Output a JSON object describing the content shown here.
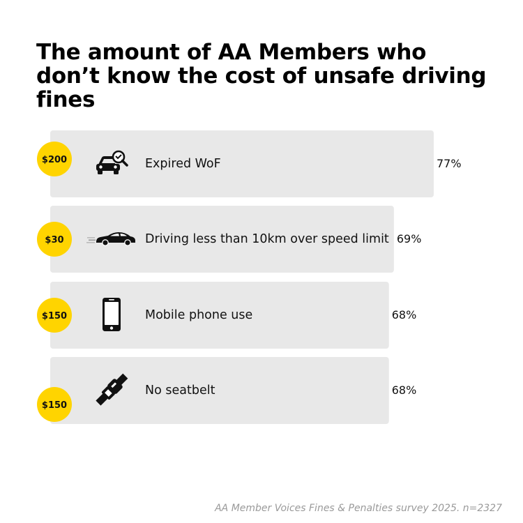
{
  "title": "The amount of AA Members who don’t know the cost of unsafe driving fines",
  "source": "AA Member Voices Fines & Penalties survey 2025. n=2327",
  "colors": {
    "bar": "#e8e8e8",
    "badge": "#ffd400",
    "icon": "#111111"
  },
  "chart_data": {
    "type": "bar",
    "orientation": "horizontal",
    "categories": [
      "Expired WoF",
      "Driving less than 10km over speed limit",
      "Mobile phone use",
      "No seatbelt"
    ],
    "values": [
      77,
      69,
      68,
      68
    ],
    "value_labels": [
      "77%",
      "69%",
      "68%",
      "68%"
    ],
    "fines": [
      "$200",
      "$30",
      "$150",
      "$150"
    ],
    "icons": [
      "car-inspection-icon",
      "speeding-car-icon",
      "mobile-phone-icon",
      "seatbelt-icon"
    ],
    "title": "The amount of AA Members who don’t know the cost of unsafe driving fines",
    "xlim": [
      0,
      77
    ],
    "grid": false
  }
}
